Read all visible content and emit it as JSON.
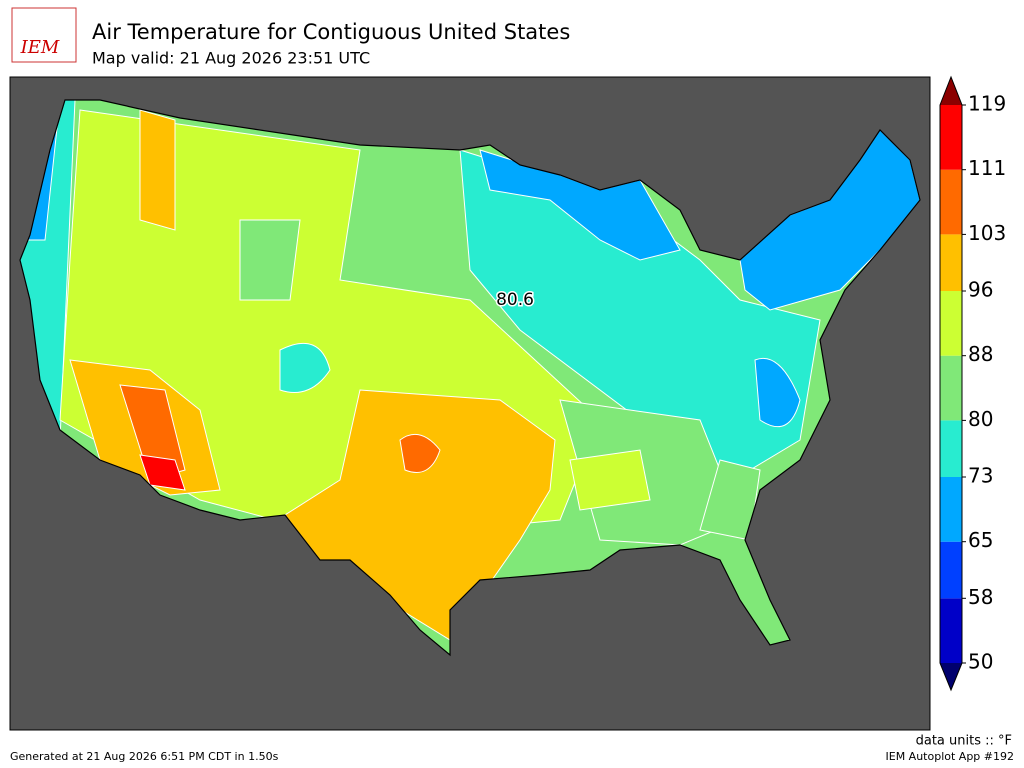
{
  "header": {
    "logo": "IEM",
    "title": "Air Temperature for Contiguous United States",
    "subtitle": "Map valid: 21 Aug 2026 23:51 UTC"
  },
  "map": {
    "station_value": 80.6
  },
  "colorbar": {
    "ticks": [
      50,
      58,
      65,
      73,
      80,
      88,
      96,
      103,
      111,
      119
    ],
    "colors": [
      "#0000c8",
      "#0040ff",
      "#00a8ff",
      "#28ecd0",
      "#80e878",
      "#ccff33",
      "#ffc000",
      "#ff6a00",
      "#ff0000"
    ],
    "under_color": "#00006e",
    "over_color": "#8b0000",
    "units_label": "data units :: °F"
  },
  "footer": {
    "generated": "Generated at 21 Aug 2026 6:51 PM CDT in 1.50s",
    "app": "IEM Autoplot App #192"
  }
}
